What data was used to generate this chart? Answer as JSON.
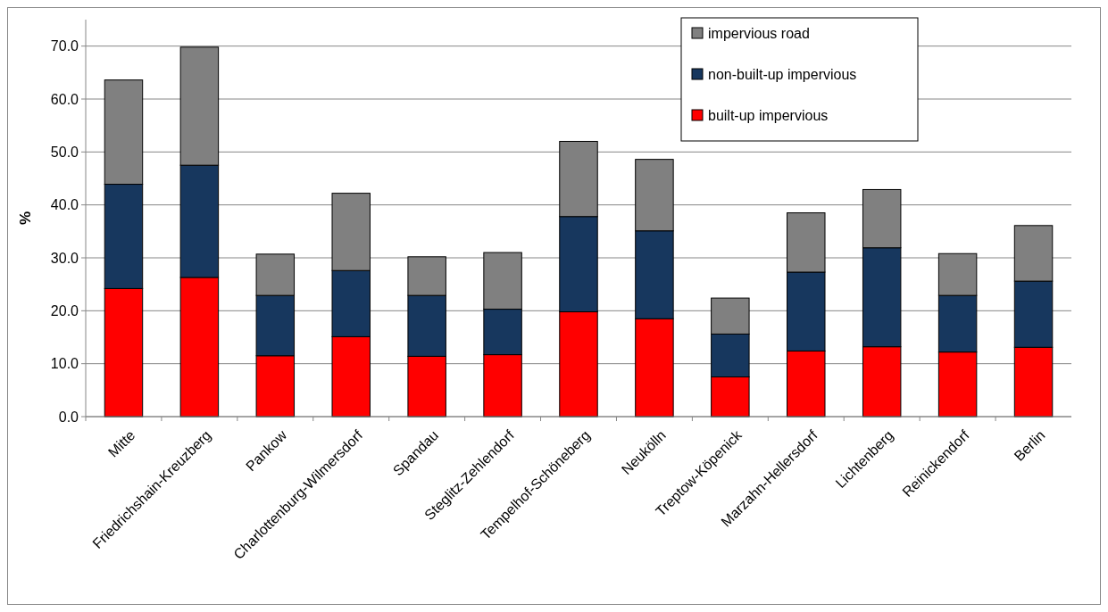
{
  "chart_data": {
    "type": "bar",
    "stacked": true,
    "ylabel": "%",
    "categories": [
      "Mitte",
      "Friedrichshain-Kreuzberg",
      "Pankow",
      "Charlottenburg-Wilmersdorf",
      "Spandau",
      "Steglitz-Zehlendorf",
      "Tempelhof-Schöneberg",
      "Neukölln",
      "Treptow-Köpenick",
      "Marzahn-Hellersdorf",
      "Lichtenberg",
      "Reinickendorf",
      "Berlin"
    ],
    "series": [
      {
        "name": "built-up impervious",
        "color": "#ff0000",
        "values": [
          24.2,
          26.3,
          11.5,
          15.1,
          11.4,
          11.7,
          19.8,
          18.5,
          7.5,
          12.4,
          13.2,
          12.2,
          13.1
        ]
      },
      {
        "name": "non-built-up impervious",
        "color": "#17375e",
        "values": [
          19.7,
          21.2,
          11.4,
          12.5,
          11.5,
          8.6,
          18.0,
          16.6,
          8.1,
          14.9,
          18.7,
          10.7,
          12.5
        ]
      },
      {
        "name": "impervious road",
        "color": "#808080",
        "values": [
          19.7,
          22.3,
          7.8,
          14.6,
          7.3,
          10.7,
          14.2,
          13.5,
          6.8,
          11.2,
          11.0,
          7.9,
          10.5
        ]
      }
    ],
    "ylim": [
      0,
      75
    ],
    "yticks": [
      {
        "value": 0,
        "label": "0.0"
      },
      {
        "value": 10,
        "label": "10.0"
      },
      {
        "value": 20,
        "label": "20.0"
      },
      {
        "value": 30,
        "label": "30.0"
      },
      {
        "value": 40,
        "label": "40.0"
      },
      {
        "value": 50,
        "label": "50.0"
      },
      {
        "value": 60,
        "label": "60.0"
      },
      {
        "value": 70,
        "label": "70.0"
      }
    ],
    "grid": "y",
    "legend": "top right"
  }
}
